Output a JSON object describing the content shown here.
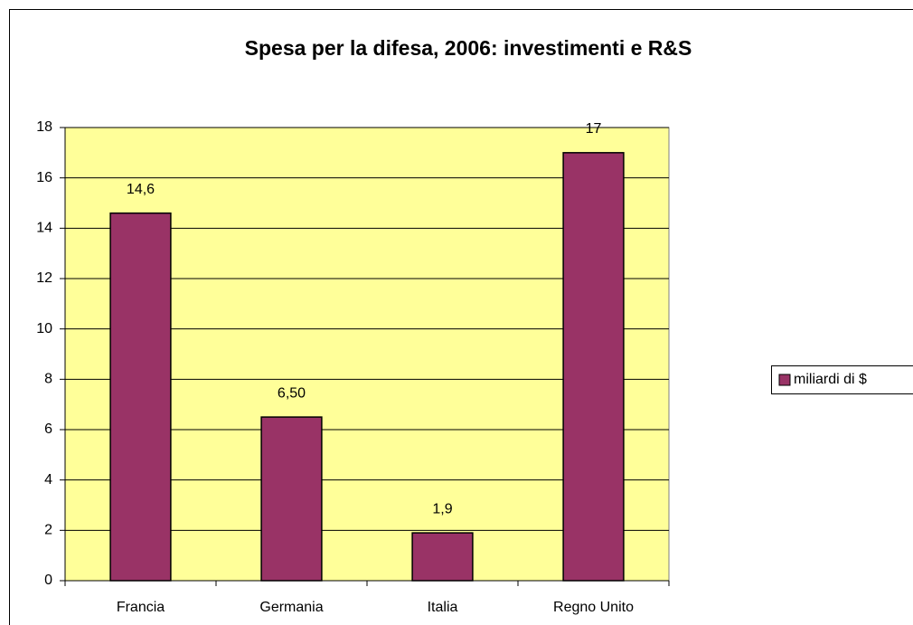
{
  "chart_data": {
    "type": "bar",
    "title": "Spesa per la difesa, 2006: investimenti e R&S",
    "categories": [
      "Francia",
      "Germania",
      "Italia",
      "Regno Unito"
    ],
    "series": [
      {
        "name": "miliardi di $",
        "color": "#993366",
        "values": [
          14.6,
          6.5,
          1.9,
          17
        ],
        "value_labels": [
          "14,6",
          "6,50",
          "1,9",
          "17"
        ]
      }
    ],
    "ylim": [
      0,
      18
    ],
    "yticks": [
      0,
      2,
      4,
      6,
      8,
      10,
      12,
      14,
      16,
      18
    ],
    "grid": true,
    "legend": "right",
    "plot_background": "#ffff99"
  }
}
